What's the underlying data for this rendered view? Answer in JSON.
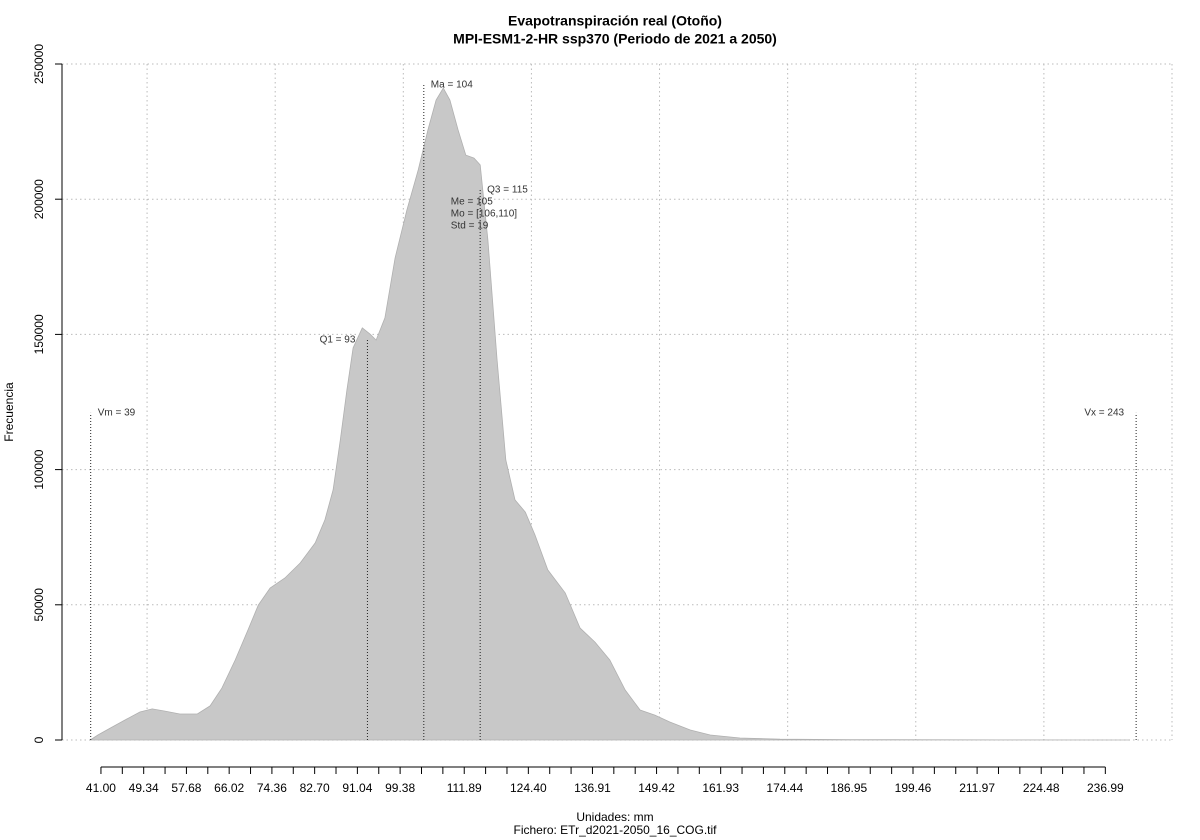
{
  "chart_data": {
    "type": "area",
    "title": "Evapotranspiración real (Otoño)",
    "subtitle": "MPI-ESM1-2-HR ssp370 (Periodo de 2021 a 2050)",
    "x_label": "Unidades: mm",
    "caption": "Fichero: ETr_d2021-2050_16_COG.tif",
    "y_label": "Frecuencia",
    "color": "#c8c8c8",
    "x": [
      38.9,
      40.4,
      42.8,
      45.7,
      48.6,
      51.0,
      53.5,
      56.4,
      59.8,
      62.3,
      64.6,
      67.2,
      69.7,
      71.7,
      74.0,
      76.9,
      79.9,
      82.8,
      84.7,
      86.3,
      87.7,
      89.0,
      90.2,
      92.0,
      93.5,
      94.7,
      96.4,
      98.4,
      100.7,
      102.9,
      104.8,
      106.4,
      107.8,
      109.1,
      110.7,
      112.2,
      113.8,
      115.0,
      116.5,
      118.3,
      120.0,
      121.8,
      123.8,
      125.7,
      128.2,
      131.6,
      134.5,
      137.4,
      140.3,
      143.3,
      146.2,
      149.1,
      152.0,
      156.0,
      159.9,
      165.7,
      173.5,
      187.2,
      216.4,
      241.8
    ],
    "values": [
      0,
      1850,
      4400,
      7400,
      10350,
      11500,
      10700,
      9600,
      9600,
      12600,
      19200,
      29600,
      40700,
      49900,
      56200,
      59900,
      65500,
      72900,
      81400,
      92500,
      110900,
      129400,
      145000,
      152400,
      150100,
      147900,
      156100,
      178300,
      196000,
      210800,
      225600,
      236700,
      241100,
      236700,
      225600,
      216300,
      215200,
      212700,
      184900,
      140500,
      103600,
      88800,
      84300,
      75800,
      62900,
      54400,
      41400,
      36200,
      29600,
      18500,
      11100,
      9200,
      6650,
      3700,
      1850,
      740,
      300,
      150,
      50,
      0
    ],
    "xlim": [
      33.4,
      250
    ],
    "ylim": [
      0,
      250000
    ],
    "yticks": [
      0,
      50000,
      100000,
      150000,
      200000,
      250000
    ],
    "xticks": [
      {
        "value": 41,
        "label": "41.00"
      },
      49.34,
      57.68,
      66.02,
      74.36,
      {
        "value": 82.7,
        "label": "82.70"
      },
      91.04,
      99.38,
      111.89,
      {
        "value": 124.4,
        "label": "124.40"
      },
      136.91,
      149.42,
      161.93,
      174.44,
      186.95,
      199.46,
      211.97,
      224.48,
      236.99
    ],
    "x_minor_ticks": [
      45.17,
      53.51,
      61.85,
      70.19,
      78.53,
      86.87,
      95.21,
      103.55,
      107.72,
      116.06,
      120.23,
      128.57,
      132.74,
      141.08,
      145.25,
      153.59,
      157.76,
      166.1,
      170.27,
      178.61,
      182.78,
      191.12,
      195.29,
      203.63,
      207.8,
      216.14,
      220.31,
      228.65,
      232.82
    ],
    "x_grid": [
      50,
      75,
      100,
      125,
      150,
      175,
      200,
      225,
      250
    ],
    "grid": true,
    "annotations": [
      {
        "label": "Vm = 39",
        "x": 39,
        "y": 121000,
        "side": "right"
      },
      {
        "label": "Q1 = 93",
        "x": 93,
        "y": 148000,
        "side": "left"
      },
      {
        "label": "Ma = 104",
        "x": 104,
        "y": 242300,
        "side": "right"
      },
      {
        "label": "Q3 = 115",
        "x": 115,
        "y": 203400,
        "side": "right"
      },
      {
        "label": "Vx = 243",
        "x": 243,
        "y": 121000,
        "side": "left"
      }
    ],
    "stats": [
      "Me = 105",
      "Mo = [106,110]",
      "Std = 19"
    ]
  }
}
